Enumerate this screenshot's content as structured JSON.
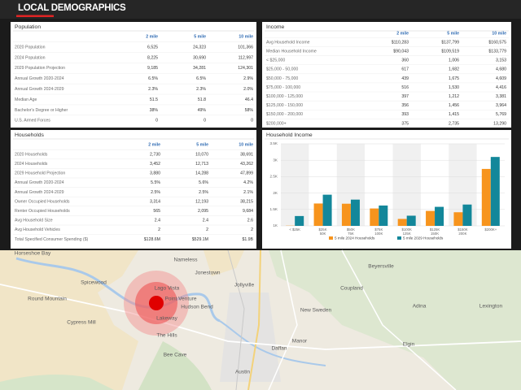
{
  "header": {
    "title": "LOCAL DEMOGRAPHICS"
  },
  "population": {
    "title": "Population",
    "columns": [
      "2 mile",
      "5 mile",
      "10 mile"
    ],
    "rows": [
      [
        "2020 Population",
        "6,525",
        "24,323",
        "101,366"
      ],
      [
        "2024 Population",
        "8,225",
        "30,690",
        "112,997"
      ],
      [
        "2029 Population Projection",
        "9,185",
        "34,281",
        "124,301"
      ],
      [
        "Annual Growth 2020-2024",
        "6.5%",
        "6.5%",
        "2.9%"
      ],
      [
        "Annual Growth 2024-2029",
        "2.3%",
        "2.3%",
        "2.0%"
      ],
      [
        "Median Age",
        "51.5",
        "51.8",
        "46.4"
      ],
      [
        "Bachelor's Degree or Higher",
        "38%",
        "49%",
        "58%"
      ],
      [
        "U.S. Armed Forces",
        "0",
        "0",
        "0"
      ]
    ]
  },
  "income": {
    "title": "Income",
    "columns": [
      "2 mile",
      "5 mile",
      "10 mile"
    ],
    "rows": [
      [
        "Avg Household Income",
        "$110,283",
        "$137,799",
        "$160,575"
      ],
      [
        "Median Household Income",
        "$90,043",
        "$109,519",
        "$133,779"
      ],
      [
        "< $25,000",
        "360",
        "1,006",
        "3,153"
      ],
      [
        "$25,000 - 50,000",
        "617",
        "1,682",
        "4,680"
      ],
      [
        "$50,000 - 75,000",
        "439",
        "1,675",
        "4,609"
      ],
      [
        "$75,000 - 100,000",
        "516",
        "1,530",
        "4,416"
      ],
      [
        "$100,000 - 125,000",
        "397",
        "1,212",
        "3,381"
      ],
      [
        "$125,000 - 150,000",
        "356",
        "1,456",
        "3,964"
      ],
      [
        "$150,000 - 200,000",
        "393",
        "1,415",
        "5,769"
      ],
      [
        "$200,000+",
        "375",
        "2,735",
        "13,290"
      ]
    ]
  },
  "households": {
    "title": "Households",
    "columns": [
      "2 mile",
      "5 mile",
      "10 mile"
    ],
    "rows": [
      [
        "2020 Households",
        "2,730",
        "10,070",
        "38,691"
      ],
      [
        "2024 Households",
        "3,452",
        "12,713",
        "43,262"
      ],
      [
        "2029 Household Projection",
        "3,880",
        "14,288",
        "47,899"
      ],
      [
        "Annual Growth 2020-2024",
        "5.5%",
        "5.6%",
        "4.2%"
      ],
      [
        "Annual Growth 2024-2029",
        "2.5%",
        "2.5%",
        "2.1%"
      ],
      [
        "Owner Occupied Households",
        "3,314",
        "12,193",
        "38,215"
      ],
      [
        "Renter Occupied Households",
        "565",
        "2,095",
        "9,684"
      ],
      [
        "Avg Household Size",
        "2.4",
        "2.4",
        "2.6"
      ],
      [
        "Avg Household Vehicles",
        "2",
        "2",
        "2"
      ],
      [
        "Total Specified Consumer Spending ($)",
        "$128.6M",
        "$529.1M",
        "$1.9B"
      ]
    ]
  },
  "chart_data": {
    "type": "bar",
    "title": "Household Income",
    "categories": [
      "< $25K",
      "$25K\n50K",
      "$50K\n75K",
      "$75K\n100K",
      "$100K\n125K",
      "$125K\n150K",
      "$150K\n200K",
      "$200K+"
    ],
    "series": [
      {
        "name": "5 mile 2024 Households",
        "color": "#f7941d",
        "values": [
          1006,
          1682,
          1675,
          1530,
          1212,
          1456,
          1415,
          2735
        ]
      },
      {
        "name": "5 mile 2029 Households",
        "color": "#13879a",
        "values": [
          1300,
          1950,
          1800,
          1620,
          1310,
          1580,
          1650,
          3100
        ]
      }
    ],
    "ylim": [
      1000,
      3500
    ],
    "yticks": [
      {
        "value": 1000,
        "label": "1K"
      },
      {
        "value": 1500,
        "label": "1.5K"
      },
      {
        "value": 2000,
        "label": "2K"
      },
      {
        "value": 2500,
        "label": "2.5K"
      },
      {
        "value": 3000,
        "label": "3K"
      },
      {
        "value": 3500,
        "label": "3.5K"
      }
    ],
    "grid": true,
    "legend": "bottom"
  },
  "map": {
    "labels": [
      "Horseshoe Bay",
      "Spicewood",
      "Round Mountain",
      "Cypress Mill",
      "Nameless",
      "Jonestown",
      "Lago Vista",
      "Point Venture",
      "Hudson Bend",
      "Lakeway",
      "The Hills",
      "Bee Cave",
      "Jollyville",
      "Beyersville",
      "Coupland",
      "New Sweden",
      "Adina",
      "Lexington",
      "Elgin",
      "Manor",
      "Daffan",
      "Austin"
    ]
  }
}
